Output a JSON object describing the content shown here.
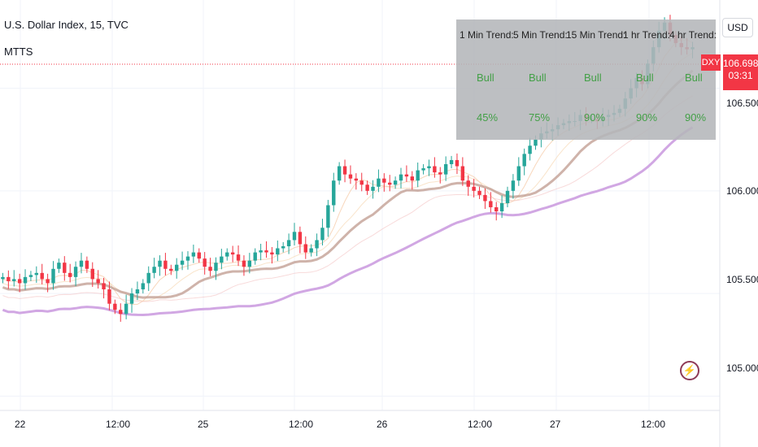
{
  "legend": {
    "symbol": "U.S. Dollar Index, 15, TVC",
    "indicator": "MTTS"
  },
  "currency_button": "USD",
  "price_label": {
    "ticker": "DXY",
    "price": "106.698",
    "countdown": "03:31"
  },
  "trend_table": {
    "headers": [
      "1 Min Trend:",
      "5 Min Trend:",
      "15 Min Trend:",
      "1 hr Trend:",
      "4 hr Trend:"
    ],
    "status": [
      "Bull",
      "Bull",
      "Bull",
      "Bull",
      "Bull"
    ],
    "percent": [
      "45%",
      "75%",
      "90%",
      "90%",
      "90%"
    ]
  },
  "y_axis": {
    "ticks": [
      "106.000",
      "105.500",
      "105.000"
    ],
    "partial": "106.500"
  },
  "x_axis": {
    "ticks": [
      "22",
      "12:00",
      "25",
      "12:00",
      "26",
      "12:00",
      "27",
      "12:00"
    ]
  },
  "icons": {
    "bolt": "lightning-bolt-icon"
  },
  "colors": {
    "bull": "#26a69a",
    "bear": "#f23645",
    "purple_line": "#d1a7e3",
    "brown_line": "#bf9a8e"
  },
  "chart_data": {
    "type": "candlestick",
    "y_range": [
      104.93,
      106.93
    ],
    "series": [
      {
        "name": "",
        "values": [
          105.58,
          105.56,
          105.57,
          105.55,
          105.58,
          105.59,
          105.6,
          105.57,
          105.55,
          105.62,
          105.65,
          105.6,
          105.58,
          105.63,
          105.66,
          105.62,
          105.57,
          105.55,
          105.52,
          105.45,
          105.42,
          105.4,
          105.45,
          105.5,
          105.52,
          105.55,
          105.6,
          105.63,
          105.66,
          105.62,
          105.61,
          105.64,
          105.66,
          105.68,
          105.7,
          105.67,
          105.63,
          105.61,
          105.65,
          105.68,
          105.7,
          105.69,
          105.66,
          105.63,
          105.66,
          105.7,
          105.71,
          105.7,
          105.69,
          105.72,
          105.73,
          105.76,
          105.8,
          105.74,
          105.7,
          105.72,
          105.76,
          105.82,
          105.93,
          106.05,
          106.12,
          106.08,
          106.06,
          106.05,
          106.03,
          106.0,
          106.02,
          106.06,
          106.04,
          106.03,
          106.05,
          106.08,
          106.07,
          106.05,
          106.1,
          106.11,
          106.12,
          106.09,
          106.08,
          106.13,
          106.15,
          106.12,
          106.05,
          106.02,
          106.0,
          105.98,
          105.95,
          105.92,
          105.9,
          105.94,
          106.0,
          106.05,
          106.12,
          106.18,
          106.22,
          106.25,
          106.28,
          106.29,
          106.3,
          106.32,
          106.33,
          106.34,
          106.34,
          106.37,
          106.35,
          106.35,
          106.34,
          106.36,
          106.37,
          106.38,
          106.4,
          106.45,
          106.5,
          106.55,
          106.52,
          106.62,
          106.7,
          106.78,
          106.82,
          106.76,
          106.72,
          106.7,
          106.69,
          106.7
        ]
      }
    ]
  }
}
